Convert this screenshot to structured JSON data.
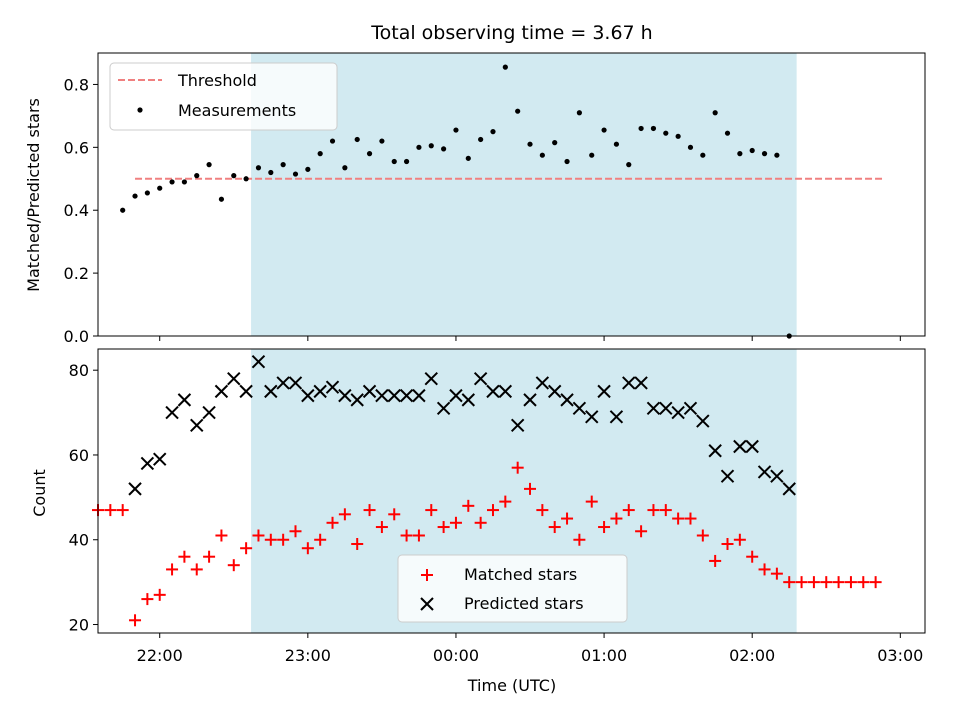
{
  "chart_data": [
    {
      "type": "scatter",
      "title": "Total observing time = 3.67 h",
      "xlabel": "",
      "ylabel": "Matched/Predicted stars",
      "xlim": [
        "21:35",
        "03:10"
      ],
      "ylim": [
        0,
        0.9
      ],
      "yticks": [
        "0.0",
        "0.2",
        "0.4",
        "0.6",
        "0.8"
      ],
      "legend": {
        "placement": "upper-left"
      },
      "shaded_interval": {
        "start": "22:37",
        "end": "02:18",
        "color": "#add8e6"
      },
      "threshold": {
        "name": "Threshold",
        "value": 0.5,
        "x_start": "21:50",
        "x_end": "02:53",
        "color": "#f08080"
      },
      "series": [
        {
          "name": "Measurements",
          "color": "#000000",
          "x": [
            "21:45",
            "21:50",
            "21:55",
            "22:00",
            "22:05",
            "22:10",
            "22:15",
            "22:20",
            "22:25",
            "22:30",
            "22:35",
            "22:40",
            "22:45",
            "22:50",
            "22:55",
            "23:00",
            "23:05",
            "23:10",
            "23:15",
            "23:20",
            "23:25",
            "23:30",
            "23:35",
            "23:40",
            "23:45",
            "23:50",
            "23:55",
            "00:00",
            "00:05",
            "00:10",
            "00:15",
            "00:20",
            "00:25",
            "00:30",
            "00:35",
            "00:40",
            "00:45",
            "00:50",
            "00:55",
            "01:00",
            "01:05",
            "01:10",
            "01:15",
            "01:20",
            "01:25",
            "01:30",
            "01:35",
            "01:40",
            "01:45",
            "01:50",
            "01:55",
            "02:00",
            "02:05",
            "02:10",
            "02:15"
          ],
          "y": [
            0.4,
            0.445,
            0.455,
            0.47,
            0.49,
            0.49,
            0.51,
            0.545,
            0.435,
            0.51,
            0.5,
            0.535,
            0.52,
            0.545,
            0.515,
            0.53,
            0.58,
            0.62,
            0.535,
            0.625,
            0.58,
            0.62,
            0.555,
            0.555,
            0.6,
            0.605,
            0.595,
            0.655,
            0.565,
            0.625,
            0.65,
            0.855,
            0.715,
            0.61,
            0.575,
            0.615,
            0.555,
            0.71,
            0.575,
            0.655,
            0.61,
            0.545,
            0.66,
            0.66,
            0.645,
            0.635,
            0.6,
            0.575,
            0.71,
            0.645,
            0.58,
            0.59,
            0.58,
            0.575,
            0.0
          ]
        }
      ]
    },
    {
      "type": "scatter",
      "title": "",
      "xlabel": "Time (UTC)",
      "ylabel": "Count",
      "xlim": [
        "21:35",
        "03:10"
      ],
      "ylim": [
        18,
        85
      ],
      "xticks": [
        "22:00",
        "23:00",
        "00:00",
        "01:00",
        "02:00",
        "03:00"
      ],
      "yticks": [
        "20",
        "40",
        "60",
        "80"
      ],
      "legend": {
        "placement": "lower-center"
      },
      "shaded_interval": {
        "start": "22:37",
        "end": "02:18",
        "color": "#add8e6"
      },
      "series": [
        {
          "name": "Matched stars",
          "marker": "+",
          "color": "#ff0000",
          "x": [
            "21:35",
            "21:40",
            "21:45",
            "21:50",
            "21:55",
            "22:00",
            "22:05",
            "22:10",
            "22:15",
            "22:20",
            "22:25",
            "22:30",
            "22:35",
            "22:40",
            "22:45",
            "22:50",
            "22:55",
            "23:00",
            "23:05",
            "23:10",
            "23:15",
            "23:20",
            "23:25",
            "23:30",
            "23:35",
            "23:40",
            "23:45",
            "23:50",
            "23:55",
            "00:00",
            "00:05",
            "00:10",
            "00:15",
            "00:20",
            "00:25",
            "00:30",
            "00:35",
            "00:40",
            "00:45",
            "00:50",
            "00:55",
            "01:00",
            "01:05",
            "01:10",
            "01:15",
            "01:20",
            "01:25",
            "01:30",
            "01:35",
            "01:40",
            "01:45",
            "01:50",
            "01:55",
            "02:00",
            "02:05",
            "02:10",
            "02:15",
            "02:20",
            "02:25",
            "02:30",
            "02:35",
            "02:40",
            "02:45",
            "02:50"
          ],
          "y": [
            47,
            47,
            47,
            21,
            26,
            27,
            33,
            36,
            33,
            36,
            41,
            34,
            38,
            41,
            40,
            40,
            42,
            38,
            40,
            44,
            46,
            39,
            47,
            43,
            46,
            41,
            41,
            47,
            43,
            44,
            48,
            44,
            47,
            49,
            57,
            52,
            47,
            43,
            45,
            40,
            49,
            43,
            45,
            47,
            42,
            47,
            47,
            45,
            45,
            41,
            35,
            39,
            40,
            36,
            33,
            32,
            30,
            30,
            30,
            30,
            30,
            30,
            30,
            30
          ]
        },
        {
          "name": "Predicted stars",
          "marker": "x",
          "color": "#000000",
          "x": [
            "21:50",
            "21:55",
            "22:00",
            "22:05",
            "22:10",
            "22:15",
            "22:20",
            "22:25",
            "22:30",
            "22:35",
            "22:40",
            "22:45",
            "22:50",
            "22:55",
            "23:00",
            "23:05",
            "23:10",
            "23:15",
            "23:20",
            "23:25",
            "23:30",
            "23:35",
            "23:40",
            "23:45",
            "23:50",
            "23:55",
            "00:00",
            "00:05",
            "00:10",
            "00:15",
            "00:20",
            "00:25",
            "00:30",
            "00:35",
            "00:40",
            "00:45",
            "00:50",
            "00:55",
            "01:00",
            "01:05",
            "01:10",
            "01:15",
            "01:20",
            "01:25",
            "01:30",
            "01:35",
            "01:40",
            "01:45",
            "01:50",
            "01:55",
            "02:00",
            "02:05",
            "02:10",
            "02:15"
          ],
          "y": [
            52,
            58,
            59,
            70,
            73,
            67,
            70,
            75,
            78,
            75,
            82,
            75,
            77,
            77,
            74,
            75,
            76,
            74,
            73,
            75,
            74,
            74,
            74,
            74,
            78,
            71,
            74,
            73,
            78,
            75,
            75,
            67,
            73,
            77,
            75,
            73,
            71,
            69,
            75,
            69,
            77,
            77,
            71,
            71,
            70,
            71,
            68,
            61,
            55,
            62,
            62,
            56,
            55,
            52
          ]
        }
      ]
    }
  ]
}
